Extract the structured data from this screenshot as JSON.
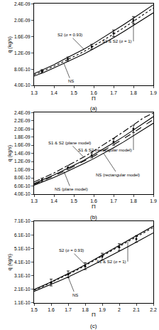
{
  "chart_data": [
    {
      "type": "line",
      "title": "(a)",
      "x_label": "Π",
      "y_label": "q (kg/s)",
      "grid": false,
      "xlim": [
        1.3,
        1.9
      ],
      "xticks": [
        1.3,
        1.4,
        1.5,
        1.6,
        1.7,
        1.8,
        1.9
      ],
      "ylim": [
        4e-10,
        2.4e-09
      ],
      "yticks": [
        {
          "value": 4e-10,
          "label": "4.0E-10"
        },
        {
          "value": 8e-10,
          "label": "8.0E-10"
        },
        {
          "value": 1.2e-09,
          "label": "1.2E-09"
        },
        {
          "value": 1.6e-09,
          "label": "1.6E-09"
        },
        {
          "value": 2e-09,
          "label": "2.0E-09"
        },
        {
          "value": 2.4e-09,
          "label": "2.4E-09"
        }
      ],
      "series": [
        {
          "name": "S2 (σ = 0.93)",
          "type": "line",
          "color": "#000000",
          "line_style": "solid",
          "x": [
            1.3,
            1.35,
            1.4,
            1.45,
            1.5,
            1.55,
            1.6,
            1.65,
            1.7,
            1.75,
            1.8,
            1.85,
            1.9
          ],
          "values": [
            6.9e-10,
            8e-10,
            9.1e-10,
            1.04e-09,
            1.16e-09,
            1.29e-09,
            1.43e-09,
            1.58e-09,
            1.73e-09,
            1.89e-09,
            2.05e-09,
            2.21e-09,
            2.38e-09
          ]
        },
        {
          "name": "S1 & S2 (σ = 1)",
          "type": "line",
          "color": "#000000",
          "line_style": "dot",
          "x": [
            1.3,
            1.35,
            1.4,
            1.45,
            1.5,
            1.55,
            1.6,
            1.65,
            1.7,
            1.75,
            1.8,
            1.85,
            1.9
          ],
          "values": [
            6.6e-10,
            7.6e-10,
            8.7e-10,
            9.9e-10,
            1.11e-09,
            1.23e-09,
            1.37e-09,
            1.51e-09,
            1.66e-09,
            1.81e-09,
            1.97e-09,
            2.13e-09,
            2.3e-09
          ]
        },
        {
          "name": "NS",
          "type": "line",
          "color": "#000000",
          "line_style": "solid",
          "x": [
            1.3,
            1.35,
            1.4,
            1.45,
            1.5,
            1.55,
            1.6,
            1.65,
            1.7,
            1.75,
            1.8,
            1.85,
            1.9
          ],
          "values": [
            6.3e-10,
            7.2e-10,
            8.3e-10,
            9.4e-10,
            1.05e-09,
            1.17e-09,
            1.3e-09,
            1.43e-09,
            1.57e-09,
            1.72e-09,
            1.87e-09,
            2.02e-09,
            2.18e-09
          ]
        },
        {
          "type": "scatter",
          "color": "#000000",
          "marker": "circle",
          "x": [
            1.34,
            1.47,
            1.59,
            1.7,
            1.8
          ],
          "values": [
            7.5e-10,
            1.05e-09,
            1.35e-09,
            1.68e-09,
            2e-09
          ],
          "error": [
            4e-11,
            5e-11,
            6e-11,
            8e-11,
            9e-11
          ]
        }
      ]
    },
    {
      "type": "line",
      "title": "(b)",
      "x_label": "Π",
      "y_label": "q (kg/s)",
      "grid": false,
      "xlim": [
        1.3,
        1.9
      ],
      "xticks": [
        1.3,
        1.4,
        1.5,
        1.6,
        1.7,
        1.8,
        1.9
      ],
      "ylim": [
        4e-10,
        2.4e-09
      ],
      "yticks": [
        {
          "value": 4e-10,
          "label": "4.0E-10"
        },
        {
          "value": 6e-10,
          "label": "6.0E-10"
        },
        {
          "value": 8e-10,
          "label": "8.0E-10"
        },
        {
          "value": 1e-09,
          "label": "1.0E-09"
        },
        {
          "value": 1.2e-09,
          "label": "1.2E-09"
        },
        {
          "value": 1.4e-09,
          "label": "1.4E-09"
        },
        {
          "value": 1.6e-09,
          "label": "1.6E-09"
        },
        {
          "value": 1.8e-09,
          "label": "1.8E-09"
        },
        {
          "value": 2e-09,
          "label": "2.0E-09"
        },
        {
          "value": 2.2e-09,
          "label": "2.2E-09"
        },
        {
          "value": 2.4e-09,
          "label": "2.4E-09"
        }
      ],
      "series": [
        {
          "name": "S1 & S2 (plane model)",
          "type": "line",
          "color": "#000000",
          "line_style": "dashdot",
          "x": [
            1.3,
            1.35,
            1.4,
            1.45,
            1.5,
            1.55,
            1.6,
            1.65,
            1.7,
            1.75,
            1.8,
            1.85,
            1.9
          ],
          "values": [
            7e-10,
            8.1e-10,
            9.2e-10,
            1.05e-09,
            1.18e-09,
            1.31e-09,
            1.46e-09,
            1.61e-09,
            1.77e-09,
            1.93e-09,
            2.1e-09,
            2.27e-09,
            2.39e-09
          ]
        },
        {
          "name": "S1 & S2 (rectangular model)",
          "type": "line",
          "color": "#000000",
          "line_style": "solid",
          "x": [
            1.3,
            1.35,
            1.4,
            1.45,
            1.5,
            1.55,
            1.6,
            1.65,
            1.7,
            1.75,
            1.8,
            1.85,
            1.9
          ],
          "values": [
            6.6e-10,
            7.6e-10,
            8.7e-10,
            9.9e-10,
            1.11e-09,
            1.23e-09,
            1.37e-09,
            1.51e-09,
            1.66e-09,
            1.81e-09,
            1.97e-09,
            2.13e-09,
            2.3e-09
          ]
        },
        {
          "name": "NS (plane model)",
          "type": "line",
          "color": "#000000",
          "line_style": "dash",
          "x": [
            1.3,
            1.35,
            1.4,
            1.45,
            1.5,
            1.55,
            1.6,
            1.65,
            1.7,
            1.75,
            1.8,
            1.85,
            1.9
          ],
          "values": [
            6.4e-10,
            7.4e-10,
            8.5e-10,
            9.6e-10,
            1.08e-09,
            1.2e-09,
            1.33e-09,
            1.47e-09,
            1.61e-09,
            1.76e-09,
            1.91e-09,
            2.07e-09,
            2.23e-09
          ]
        },
        {
          "name": "NS (rectangular model)",
          "type": "line",
          "color": "#000000",
          "line_style": "solid",
          "x": [
            1.3,
            1.35,
            1.4,
            1.45,
            1.5,
            1.55,
            1.6,
            1.65,
            1.7,
            1.75,
            1.8,
            1.85,
            1.9
          ],
          "values": [
            6.2e-10,
            7.1e-10,
            8.1e-10,
            9.2e-10,
            1.03e-09,
            1.15e-09,
            1.27e-09,
            1.4e-09,
            1.54e-09,
            1.68e-09,
            1.83e-09,
            1.98e-09,
            2.14e-09
          ]
        },
        {
          "type": "scatter",
          "color": "#000000",
          "marker": "circle",
          "x": [
            1.34,
            1.47,
            1.59,
            1.7,
            1.8
          ],
          "values": [
            7.5e-10,
            1.05e-09,
            1.35e-09,
            1.68e-09,
            2e-09
          ],
          "error": [
            4e-11,
            5e-11,
            6e-11,
            8e-11,
            9e-11
          ]
        }
      ]
    },
    {
      "type": "line",
      "title": "(c)",
      "x_label": "Π",
      "y_label": "q (kg/s)",
      "grid": false,
      "xlim": [
        1.5,
        2.2
      ],
      "xticks": [
        1.5,
        1.6,
        1.7,
        1.8,
        1.9,
        2,
        2.1,
        2.2
      ],
      "ylim": [
        1.1e-10,
        7.1e-10
      ],
      "yticks": [
        {
          "value": 1.1e-10,
          "label": "1.1E-10"
        },
        {
          "value": 2.1e-10,
          "label": "2.1E-10"
        },
        {
          "value": 3.1e-10,
          "label": "3.1E-10"
        },
        {
          "value": 4.1e-10,
          "label": "4.1E-10"
        },
        {
          "value": 5.1e-10,
          "label": "5.1E-10"
        },
        {
          "value": 6.1e-10,
          "label": "6.1E-10"
        },
        {
          "value": 7.1e-10,
          "label": "7.1E-10"
        }
      ],
      "series": [
        {
          "name": "S2 (σ = 0.93)",
          "type": "line",
          "color": "#000000",
          "line_style": "solid",
          "x": [
            1.5,
            1.55,
            1.6,
            1.65,
            1.7,
            1.75,
            1.8,
            1.85,
            1.9,
            1.95,
            2.0,
            2.05,
            2.1,
            2.15,
            2.2
          ],
          "values": [
            2.08e-10,
            2.34e-10,
            2.64e-10,
            2.95e-10,
            3.25e-10,
            3.56e-10,
            3.91e-10,
            4.27e-10,
            4.62e-10,
            4.98e-10,
            5.33e-10,
            5.69e-10,
            6.04e-10,
            6.4e-10,
            6.75e-10
          ]
        },
        {
          "name": "S1 & S2 (σ = 1)",
          "type": "line",
          "color": "#000000",
          "line_style": "dot",
          "x": [
            1.5,
            1.55,
            1.6,
            1.65,
            1.7,
            1.75,
            1.8,
            1.85,
            1.9,
            1.95,
            2.0,
            2.05,
            2.1,
            2.15,
            2.2
          ],
          "values": [
            2.05e-10,
            2.3e-10,
            2.6e-10,
            2.9e-10,
            3.2e-10,
            3.5e-10,
            3.85e-10,
            4.2e-10,
            4.55e-10,
            4.9e-10,
            5.25e-10,
            5.6e-10,
            5.95e-10,
            6.3e-10,
            6.65e-10
          ]
        },
        {
          "name": "NS",
          "type": "line",
          "color": "#000000",
          "line_style": "solid",
          "x": [
            1.5,
            1.55,
            1.6,
            1.65,
            1.7,
            1.75,
            1.8,
            1.85,
            1.9,
            1.95,
            2.0,
            2.05,
            2.1,
            2.15,
            2.2
          ],
          "values": [
            1.95e-10,
            2.2e-10,
            2.45e-10,
            2.73e-10,
            3e-10,
            3.29e-10,
            3.6e-10,
            3.92e-10,
            4.24e-10,
            4.57e-10,
            4.9e-10,
            5.23e-10,
            5.57e-10,
            5.91e-10,
            6.25e-10
          ]
        },
        {
          "type": "scatter",
          "color": "#000000",
          "marker": "circle",
          "x": [
            1.6,
            1.7,
            1.8,
            1.9,
            2.0,
            2.1
          ],
          "values": [
            2.6e-10,
            3.2e-10,
            3.8e-10,
            4.5e-10,
            5.2e-10,
            5.8e-10
          ],
          "error": [
            2.5e-11,
            2.5e-11,
            2.5e-11,
            2.5e-11,
            2.5e-11,
            2.5e-11
          ]
        }
      ]
    }
  ]
}
